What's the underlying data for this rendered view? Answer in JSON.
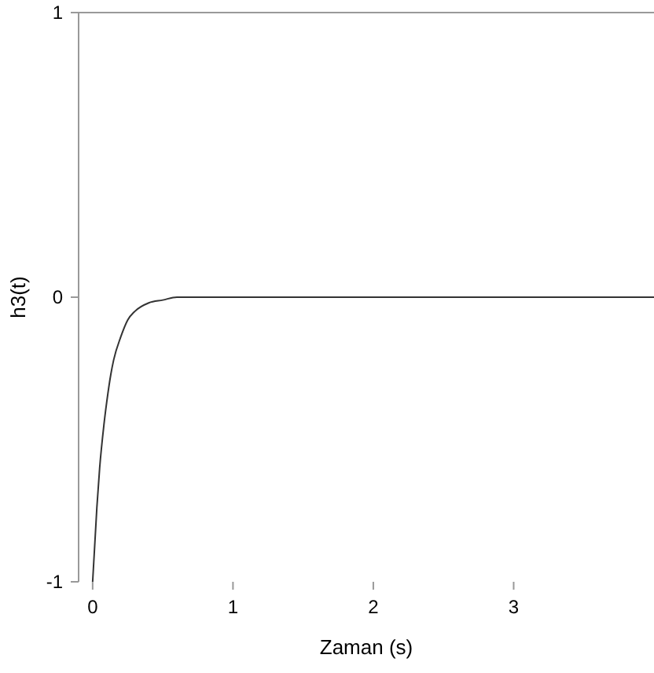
{
  "chart_data": {
    "type": "line",
    "xlabel": "Zaman (s)",
    "ylabel": "h3(t)",
    "x": [
      0,
      0.03,
      0.05,
      0.08,
      0.1,
      0.13,
      0.15,
      0.2,
      0.25,
      0.3,
      0.4,
      0.5,
      0.6,
      0.8,
      1,
      2,
      3,
      4
    ],
    "series": [
      {
        "color": "#333333",
        "values": [
          -1,
          -0.74,
          -0.6,
          -0.45,
          -0.37,
          -0.27,
          -0.22,
          -0.14,
          -0.08,
          -0.05,
          -0.02,
          -0.01,
          0,
          0,
          0,
          0,
          0,
          0
        ]
      }
    ],
    "xlim": [
      -0.1,
      4
    ],
    "ylim": [
      -1,
      1
    ],
    "xticks": [
      0,
      1,
      2,
      3
    ],
    "yticks": [
      -1,
      0,
      1
    ],
    "line_style": "solid",
    "marker": "none"
  }
}
